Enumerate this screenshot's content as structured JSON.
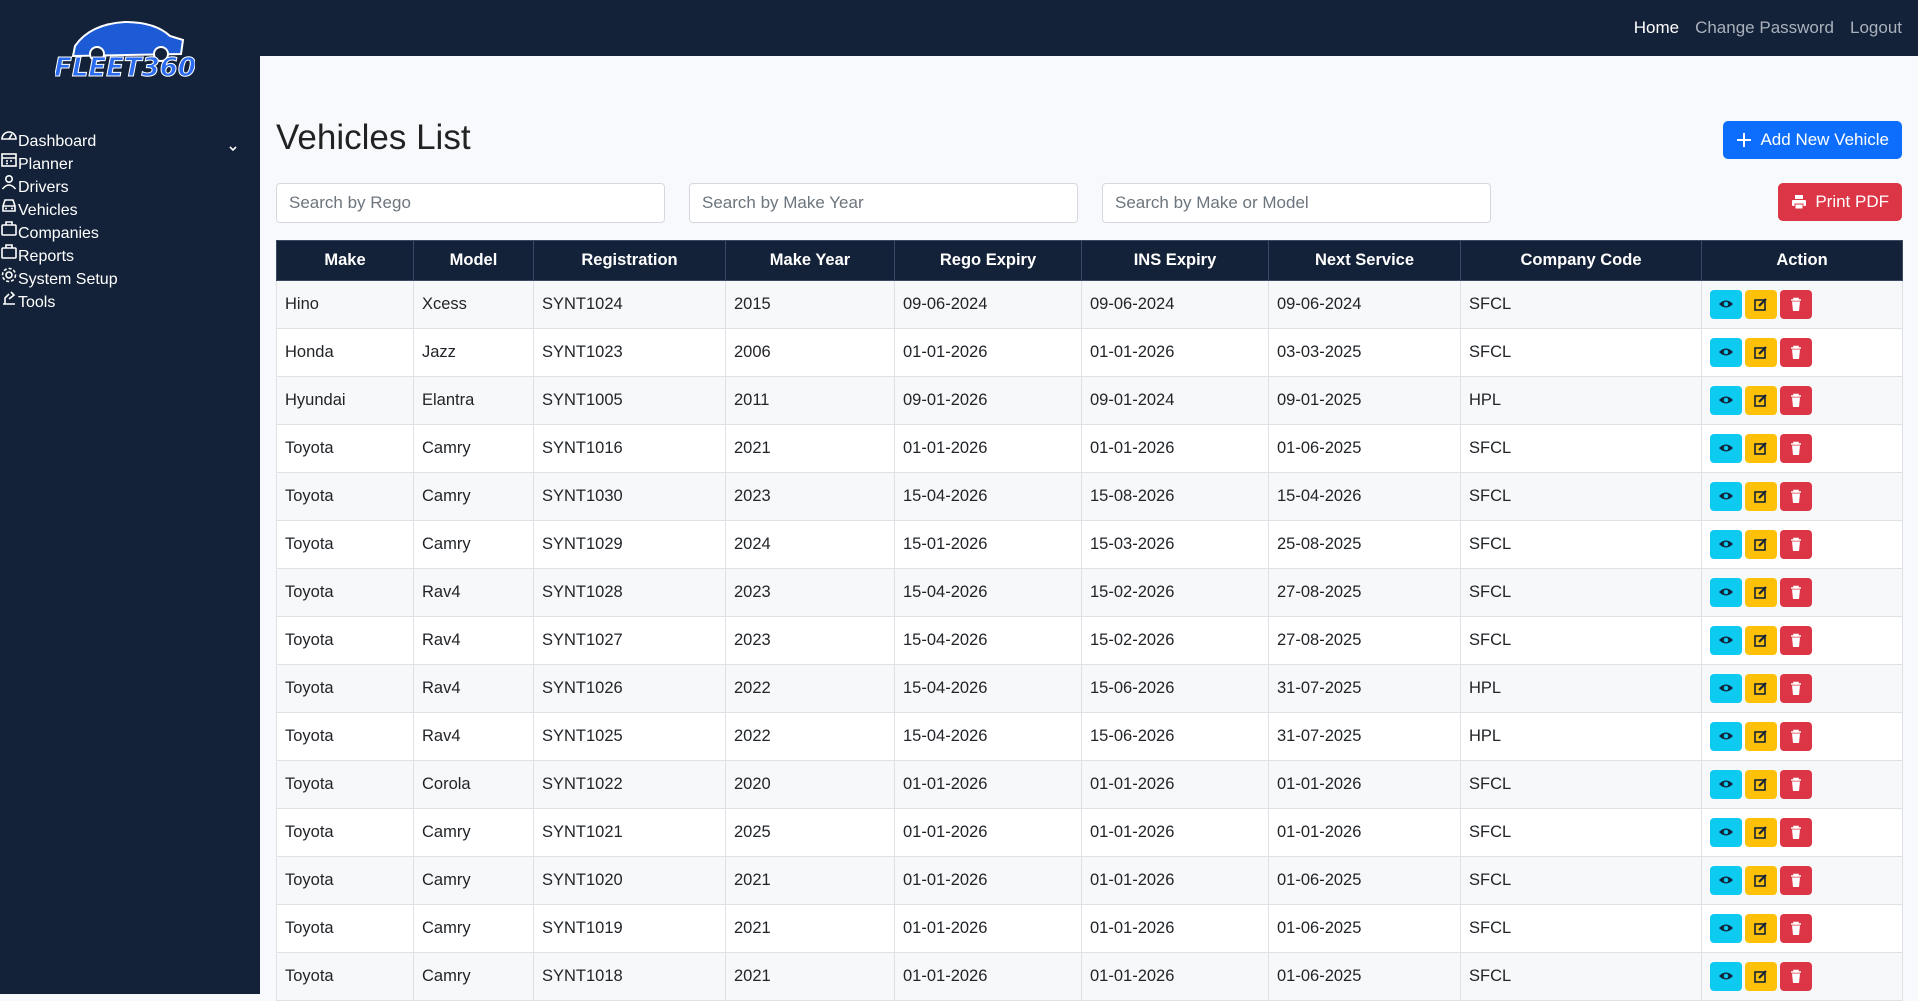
{
  "logo": "FLEET360",
  "topnav": [
    "Home",
    "Change Password",
    "Logout"
  ],
  "sidebar": [
    "Dashboard",
    "Planner",
    "Drivers",
    "Vehicles",
    "Companies",
    "Reports",
    "System Setup",
    "Tools"
  ],
  "title": "Vehicles List",
  "add_button": "Add New Vehicle",
  "print_button": "Print PDF",
  "search": [
    "Search by Rego",
    "Search by Make Year",
    "Search by Make or Model"
  ],
  "table": {
    "headers": [
      "Make",
      "Model",
      "Registration",
      "Make Year",
      "Rego Expiry",
      "INS Expiry",
      "Next Service",
      "Company Code",
      "Action"
    ],
    "rows": [
      [
        "Hino",
        "Xcess",
        "SYNT1024",
        "2015",
        "09-06-2024",
        "09-06-2024",
        "09-06-2024",
        "SFCL"
      ],
      [
        "Honda",
        "Jazz",
        "SYNT1023",
        "2006",
        "01-01-2026",
        "01-01-2026",
        "03-03-2025",
        "SFCL"
      ],
      [
        "Hyundai",
        "Elantra",
        "SYNT1005",
        "2011",
        "09-01-2026",
        "09-01-2024",
        "09-01-2025",
        "HPL"
      ],
      [
        "Toyota",
        "Camry",
        "SYNT1016",
        "2021",
        "01-01-2026",
        "01-01-2026",
        "01-06-2025",
        "SFCL"
      ],
      [
        "Toyota",
        "Camry",
        "SYNT1030",
        "2023",
        "15-04-2026",
        "15-08-2026",
        "15-04-2026",
        "SFCL"
      ],
      [
        "Toyota",
        "Camry",
        "SYNT1029",
        "2024",
        "15-01-2026",
        "15-03-2026",
        "25-08-2025",
        "SFCL"
      ],
      [
        "Toyota",
        "Rav4",
        "SYNT1028",
        "2023",
        "15-04-2026",
        "15-02-2026",
        "27-08-2025",
        "SFCL"
      ],
      [
        "Toyota",
        "Rav4",
        "SYNT1027",
        "2023",
        "15-04-2026",
        "15-02-2026",
        "27-08-2025",
        "SFCL"
      ],
      [
        "Toyota",
        "Rav4",
        "SYNT1026",
        "2022",
        "15-04-2026",
        "15-06-2026",
        "31-07-2025",
        "HPL"
      ],
      [
        "Toyota",
        "Rav4",
        "SYNT1025",
        "2022",
        "15-04-2026",
        "15-06-2026",
        "31-07-2025",
        "HPL"
      ],
      [
        "Toyota",
        "Corola",
        "SYNT1022",
        "2020",
        "01-01-2026",
        "01-01-2026",
        "01-01-2026",
        "SFCL"
      ],
      [
        "Toyota",
        "Camry",
        "SYNT1021",
        "2025",
        "01-01-2026",
        "01-01-2026",
        "01-01-2026",
        "SFCL"
      ],
      [
        "Toyota",
        "Camry",
        "SYNT1020",
        "2021",
        "01-01-2026",
        "01-01-2026",
        "01-06-2025",
        "SFCL"
      ],
      [
        "Toyota",
        "Camry",
        "SYNT1019",
        "2021",
        "01-01-2026",
        "01-01-2026",
        "01-06-2025",
        "SFCL"
      ],
      [
        "Toyota",
        "Camry",
        "SYNT1018",
        "2021",
        "01-01-2026",
        "01-01-2026",
        "01-06-2025",
        "SFCL"
      ]
    ]
  }
}
